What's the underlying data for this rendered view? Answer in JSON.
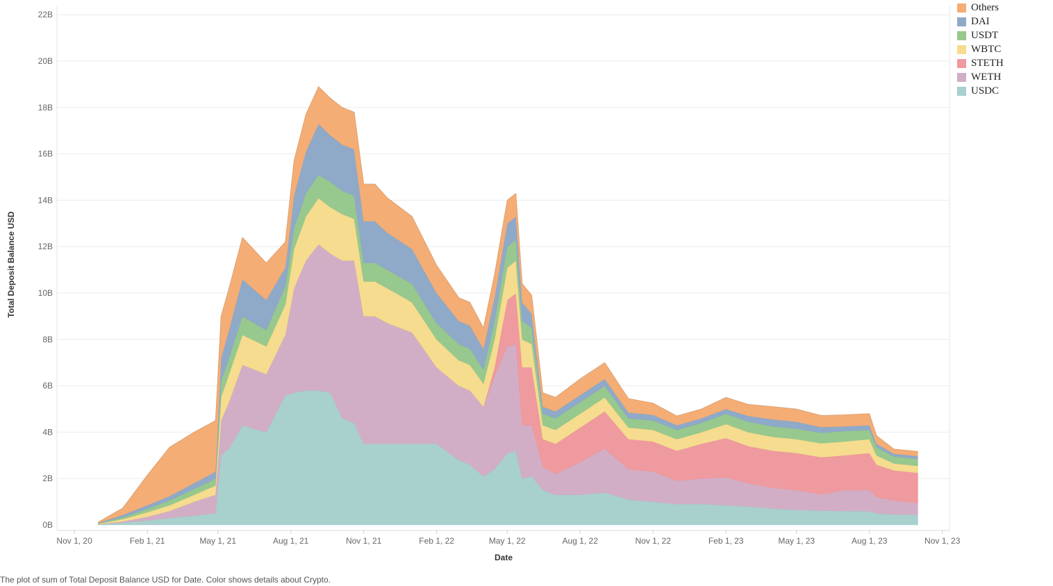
{
  "chart_data": {
    "type": "area",
    "stacked": true,
    "xlabel": "Date",
    "ylabel": "Total Deposit Balance USD",
    "caption": "The plot of sum of Total Deposit Balance USD for Date.  Color shows details about Crypto.",
    "x_domain": [
      "2020-10-10",
      "2023-11-10"
    ],
    "ylim": [
      0,
      22
    ],
    "y_ticks": [
      {
        "value": 0,
        "label": "0B"
      },
      {
        "value": 2,
        "label": "2B"
      },
      {
        "value": 4,
        "label": "4B"
      },
      {
        "value": 6,
        "label": "6B"
      },
      {
        "value": 8,
        "label": "8B"
      },
      {
        "value": 10,
        "label": "10B"
      },
      {
        "value": 12,
        "label": "12B"
      },
      {
        "value": 14,
        "label": "14B"
      },
      {
        "value": 16,
        "label": "16B"
      },
      {
        "value": 18,
        "label": "18B"
      },
      {
        "value": 20,
        "label": "20B"
      },
      {
        "value": 22,
        "label": "22B"
      }
    ],
    "x_ticks": [
      {
        "date": "2020-11-01",
        "label": "Nov 1, 20"
      },
      {
        "date": "2021-02-01",
        "label": "Feb 1, 21"
      },
      {
        "date": "2021-05-01",
        "label": "May 1, 21"
      },
      {
        "date": "2021-08-01",
        "label": "Aug 1, 21"
      },
      {
        "date": "2021-11-01",
        "label": "Nov 1, 21"
      },
      {
        "date": "2022-02-01",
        "label": "Feb 1, 22"
      },
      {
        "date": "2022-05-01",
        "label": "May 1, 22"
      },
      {
        "date": "2022-08-01",
        "label": "Aug 1, 22"
      },
      {
        "date": "2022-11-01",
        "label": "Nov 1, 22"
      },
      {
        "date": "2023-02-01",
        "label": "Feb 1, 23"
      },
      {
        "date": "2023-05-01",
        "label": "May 1, 23"
      },
      {
        "date": "2023-08-01",
        "label": "Aug 1, 23"
      },
      {
        "date": "2023-11-01",
        "label": "Nov 1, 23"
      }
    ],
    "grid": true,
    "legend_position": "top-right",
    "unit": "B USD",
    "x": [
      "2020-12-01",
      "2021-01-01",
      "2021-02-01",
      "2021-03-01",
      "2021-04-01",
      "2021-04-28",
      "2021-05-05",
      "2021-05-15",
      "2021-06-01",
      "2021-07-01",
      "2021-07-25",
      "2021-08-05",
      "2021-08-20",
      "2021-09-05",
      "2021-09-20",
      "2021-10-05",
      "2021-10-20",
      "2021-11-01",
      "2021-11-15",
      "2021-12-01",
      "2022-01-01",
      "2022-02-01",
      "2022-03-01",
      "2022-03-15",
      "2022-04-01",
      "2022-04-15",
      "2022-05-01",
      "2022-05-12",
      "2022-05-20",
      "2022-06-01",
      "2022-06-15",
      "2022-07-01",
      "2022-08-01",
      "2022-09-01",
      "2022-10-01",
      "2022-11-01",
      "2022-12-01",
      "2023-01-01",
      "2023-02-01",
      "2023-03-01",
      "2023-04-01",
      "2023-05-01",
      "2023-06-01",
      "2023-07-01",
      "2023-08-01",
      "2023-08-10",
      "2023-09-01",
      "2023-10-01"
    ],
    "series": [
      {
        "name": "USDC",
        "color": "#a8d0cc",
        "values": [
          0.02,
          0.1,
          0.2,
          0.3,
          0.4,
          0.5,
          3.0,
          3.3,
          4.3,
          4.0,
          5.6,
          5.7,
          5.8,
          5.8,
          5.7,
          4.6,
          4.4,
          3.5,
          3.5,
          3.5,
          3.5,
          3.5,
          2.8,
          2.6,
          2.1,
          2.4,
          3.1,
          3.2,
          2.0,
          2.1,
          1.5,
          1.3,
          1.3,
          1.4,
          1.1,
          1.0,
          0.9,
          0.9,
          0.85,
          0.8,
          0.7,
          0.65,
          0.62,
          0.6,
          0.6,
          0.5,
          0.45,
          0.45
        ]
      },
      {
        "name": "WETH",
        "color": "#d2aec6",
        "values": [
          0.01,
          0.05,
          0.15,
          0.3,
          0.6,
          0.8,
          1.5,
          2.0,
          2.6,
          2.5,
          2.6,
          4.5,
          5.6,
          6.3,
          6.0,
          6.8,
          7.0,
          5.5,
          5.5,
          5.2,
          4.8,
          3.3,
          3.2,
          3.2,
          3.0,
          4.0,
          4.6,
          4.6,
          2.3,
          2.2,
          1.0,
          0.9,
          1.4,
          1.9,
          1.3,
          1.3,
          1.0,
          1.1,
          1.2,
          1.0,
          0.9,
          0.85,
          0.7,
          0.9,
          0.9,
          0.7,
          0.6,
          0.5
        ]
      },
      {
        "name": "STETH",
        "color": "#ef9a9e",
        "values": [
          0,
          0,
          0,
          0,
          0,
          0,
          0,
          0,
          0,
          0,
          0,
          0,
          0,
          0,
          0,
          0,
          0,
          0,
          0,
          0,
          0,
          0,
          0,
          0,
          0,
          0.4,
          2.0,
          2.2,
          2.5,
          2.5,
          1.2,
          1.3,
          1.5,
          1.6,
          1.3,
          1.3,
          1.3,
          1.5,
          1.7,
          1.6,
          1.6,
          1.6,
          1.6,
          1.5,
          1.6,
          1.4,
          1.3,
          1.3
        ]
      },
      {
        "name": "WBTC",
        "color": "#f5dc8e",
        "values": [
          0.02,
          0.1,
          0.2,
          0.25,
          0.3,
          0.4,
          1.0,
          1.2,
          1.3,
          1.2,
          1.3,
          1.7,
          1.9,
          2.0,
          2.0,
          2.0,
          1.8,
          1.5,
          1.5,
          1.5,
          1.3,
          1.2,
          1.1,
          1.1,
          1.0,
          1.2,
          1.4,
          1.4,
          1.2,
          1.0,
          0.6,
          0.6,
          0.6,
          0.6,
          0.5,
          0.5,
          0.5,
          0.5,
          0.6,
          0.6,
          0.6,
          0.6,
          0.6,
          0.6,
          0.6,
          0.4,
          0.3,
          0.3
        ]
      },
      {
        "name": "USDT",
        "color": "#97c88d",
        "values": [
          0.02,
          0.08,
          0.15,
          0.2,
          0.25,
          0.3,
          0.7,
          0.7,
          0.8,
          0.7,
          0.8,
          0.9,
          1.0,
          1.0,
          1.1,
          1.0,
          1.0,
          0.8,
          0.8,
          0.8,
          0.8,
          0.7,
          0.7,
          0.7,
          0.6,
          0.8,
          0.9,
          0.9,
          0.8,
          0.7,
          0.5,
          0.5,
          0.5,
          0.5,
          0.4,
          0.4,
          0.4,
          0.4,
          0.45,
          0.45,
          0.45,
          0.45,
          0.45,
          0.45,
          0.4,
          0.35,
          0.3,
          0.3
        ]
      },
      {
        "name": "DAI",
        "color": "#8fa9c9",
        "values": [
          0.02,
          0.1,
          0.15,
          0.2,
          0.25,
          0.3,
          1.0,
          1.2,
          1.6,
          1.3,
          0.8,
          1.4,
          1.8,
          2.2,
          2.0,
          2.0,
          2.0,
          1.8,
          1.8,
          1.6,
          1.5,
          1.3,
          1.0,
          1.0,
          0.9,
          1.0,
          1.0,
          1.0,
          0.8,
          0.6,
          0.3,
          0.3,
          0.3,
          0.3,
          0.25,
          0.25,
          0.2,
          0.2,
          0.2,
          0.25,
          0.3,
          0.3,
          0.25,
          0.2,
          0.2,
          0.15,
          0.12,
          0.12
        ]
      },
      {
        "name": "Others",
        "color": "#f4ad75",
        "values": [
          0.03,
          0.3,
          1.3,
          2.1,
          2.2,
          2.2,
          1.8,
          1.8,
          1.8,
          1.6,
          1.1,
          1.5,
          1.6,
          1.6,
          1.6,
          1.6,
          1.6,
          1.6,
          1.6,
          1.5,
          1.4,
          1.2,
          1.0,
          1.0,
          0.9,
          1.0,
          1.0,
          1.0,
          0.8,
          0.8,
          0.6,
          0.6,
          0.7,
          0.7,
          0.6,
          0.5,
          0.4,
          0.4,
          0.5,
          0.5,
          0.55,
          0.55,
          0.5,
          0.5,
          0.5,
          0.35,
          0.2,
          0.2
        ]
      }
    ]
  }
}
